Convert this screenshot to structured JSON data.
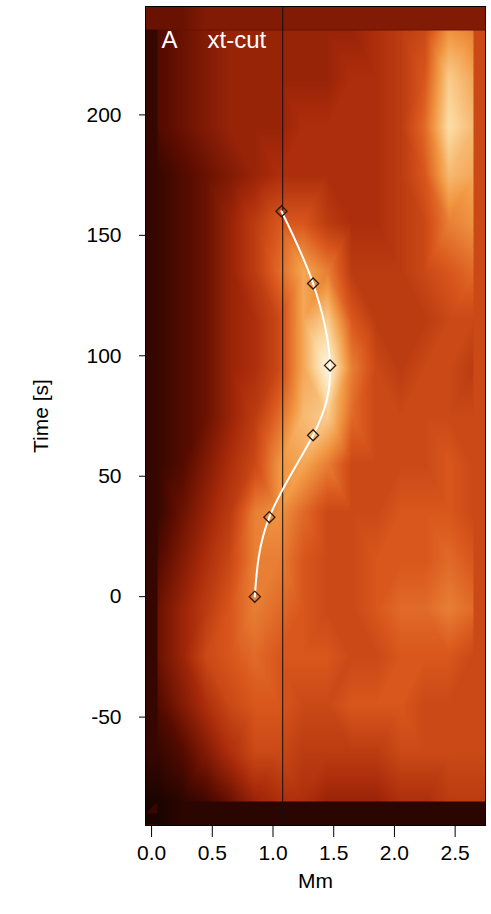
{
  "chart_data": {
    "type": "heatmap",
    "panel_label": "A",
    "title": "xt-cut",
    "x_label": "Mm",
    "y_label": "Time [s]",
    "xlim": [
      -0.05,
      2.75
    ],
    "ylim": [
      -95,
      245
    ],
    "xticks": [
      {
        "value": 0,
        "label": "0.0"
      },
      0.5,
      {
        "value": 1,
        "label": "1.0"
      },
      1.5,
      {
        "value": 2,
        "label": "2.0"
      },
      2.5
    ],
    "yticks": [
      -50,
      0,
      50,
      100,
      150,
      200
    ],
    "reference_x": 1.08,
    "heatmap": {
      "value_range": [
        0,
        1
      ],
      "x": [
        0.05,
        0.25,
        0.45,
        0.65,
        0.85,
        1.05,
        1.25,
        1.45,
        1.65,
        1.85,
        2.05,
        2.25,
        2.45,
        2.65
      ],
      "y": [
        -85,
        -65,
        -45,
        -25,
        -5,
        15,
        35,
        55,
        75,
        95,
        115,
        135,
        155,
        175,
        195,
        215,
        235
      ],
      "values": [
        [
          0.05,
          0.08,
          0.12,
          0.2,
          0.3,
          0.35,
          0.35,
          0.3,
          0.3,
          0.3,
          0.35,
          0.35,
          0.4,
          0.4
        ],
        [
          0.1,
          0.15,
          0.25,
          0.35,
          0.45,
          0.45,
          0.4,
          0.4,
          0.4,
          0.4,
          0.45,
          0.45,
          0.45,
          0.45
        ],
        [
          0.15,
          0.25,
          0.35,
          0.45,
          0.5,
          0.5,
          0.45,
          0.45,
          0.5,
          0.5,
          0.5,
          0.45,
          0.45,
          0.45
        ],
        [
          0.2,
          0.3,
          0.45,
          0.5,
          0.55,
          0.5,
          0.5,
          0.5,
          0.45,
          0.45,
          0.5,
          0.5,
          0.5,
          0.45
        ],
        [
          0.2,
          0.3,
          0.4,
          0.5,
          0.6,
          0.55,
          0.5,
          0.45,
          0.45,
          0.5,
          0.55,
          0.55,
          0.6,
          0.55
        ],
        [
          0.15,
          0.25,
          0.35,
          0.45,
          0.6,
          0.6,
          0.5,
          0.45,
          0.45,
          0.5,
          0.5,
          0.5,
          0.55,
          0.5
        ],
        [
          0.1,
          0.2,
          0.3,
          0.4,
          0.6,
          0.65,
          0.55,
          0.45,
          0.45,
          0.45,
          0.5,
          0.5,
          0.5,
          0.45
        ],
        [
          0.1,
          0.15,
          0.25,
          0.35,
          0.45,
          0.65,
          0.7,
          0.6,
          0.45,
          0.45,
          0.45,
          0.45,
          0.5,
          0.45
        ],
        [
          0.1,
          0.15,
          0.2,
          0.3,
          0.4,
          0.55,
          0.75,
          0.8,
          0.55,
          0.45,
          0.45,
          0.45,
          0.45,
          0.45
        ],
        [
          0.1,
          0.15,
          0.2,
          0.3,
          0.35,
          0.45,
          0.7,
          0.95,
          0.6,
          0.45,
          0.4,
          0.45,
          0.45,
          0.4
        ],
        [
          0.1,
          0.15,
          0.2,
          0.3,
          0.35,
          0.45,
          0.7,
          0.8,
          0.5,
          0.4,
          0.4,
          0.4,
          0.45,
          0.45
        ],
        [
          0.1,
          0.15,
          0.2,
          0.3,
          0.4,
          0.55,
          0.7,
          0.6,
          0.4,
          0.4,
          0.4,
          0.45,
          0.5,
          0.55
        ],
        [
          0.1,
          0.15,
          0.2,
          0.3,
          0.4,
          0.5,
          0.5,
          0.4,
          0.35,
          0.35,
          0.4,
          0.45,
          0.6,
          0.65
        ],
        [
          0.1,
          0.15,
          0.2,
          0.25,
          0.3,
          0.35,
          0.35,
          0.35,
          0.35,
          0.35,
          0.4,
          0.5,
          0.75,
          0.7
        ],
        [
          0.15,
          0.2,
          0.25,
          0.3,
          0.3,
          0.3,
          0.35,
          0.35,
          0.35,
          0.35,
          0.4,
          0.55,
          0.85,
          0.75
        ],
        [
          0.15,
          0.2,
          0.25,
          0.3,
          0.3,
          0.3,
          0.3,
          0.3,
          0.35,
          0.35,
          0.4,
          0.5,
          0.8,
          0.7
        ],
        [
          0.15,
          0.2,
          0.25,
          0.3,
          0.3,
          0.3,
          0.3,
          0.3,
          0.3,
          0.35,
          0.4,
          0.45,
          0.65,
          0.6
        ]
      ]
    },
    "series": [
      {
        "type": "line",
        "color": "white",
        "marker": "diamond",
        "x": [
          0.85,
          0.97,
          1.33,
          1.47,
          1.33,
          1.07
        ],
        "values": [
          0,
          33,
          67,
          96,
          130,
          160
        ]
      }
    ]
  }
}
